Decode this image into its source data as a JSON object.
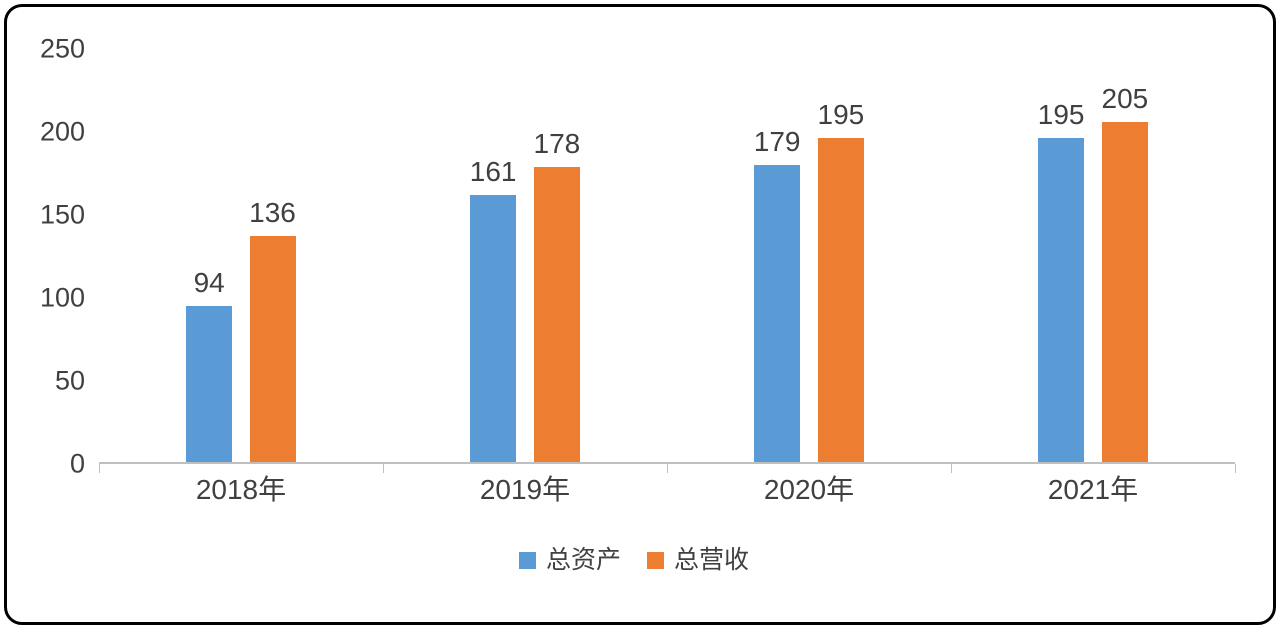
{
  "chart_data": {
    "type": "bar",
    "title": "",
    "xlabel": "",
    "ylabel": "",
    "categories": [
      "2018年",
      "2019年",
      "2020年",
      "2021年"
    ],
    "series": [
      {
        "name": "总资产",
        "color": "#5B9BD5",
        "values": [
          94,
          161,
          179,
          195
        ]
      },
      {
        "name": "总营收",
        "color": "#ED7D31",
        "values": [
          136,
          178,
          195,
          205
        ]
      }
    ],
    "ylim": [
      0,
      250
    ],
    "yticks": [
      0,
      50,
      100,
      150,
      200,
      250
    ],
    "grid": false,
    "legend_position": "bottom",
    "axis_line_color": "#bfbfbf",
    "label_color": "#404040"
  }
}
